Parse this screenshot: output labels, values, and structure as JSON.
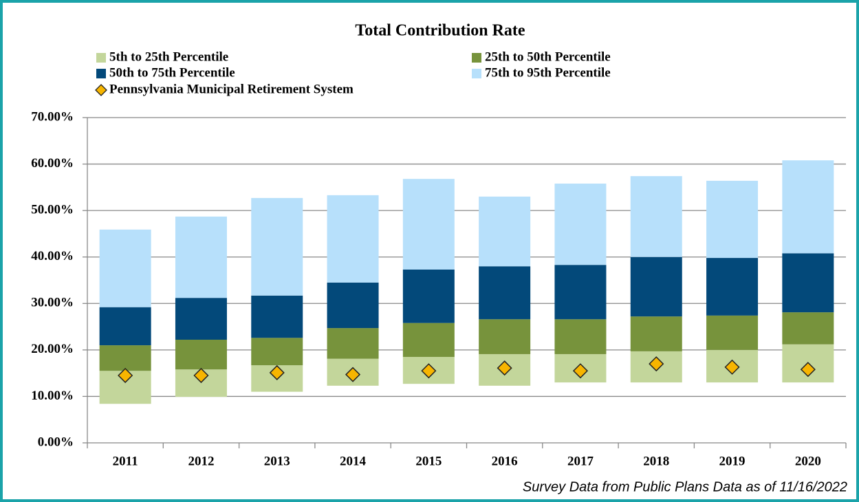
{
  "chart_data": {
    "type": "floating-stacked-bar",
    "title": "Total Contribution Rate",
    "footnote": "Survey Data from Public Plans Data as of 11/16/2022",
    "categories": [
      "2011",
      "2012",
      "2013",
      "2014",
      "2015",
      "2016",
      "2017",
      "2018",
      "2019",
      "2020"
    ],
    "bases": [
      8.4,
      9.9,
      11.0,
      12.3,
      12.7,
      12.3,
      13.0,
      13.0,
      13.0,
      13.0
    ],
    "series": [
      {
        "name": "5th to 25th Percentile",
        "color": "#c3d69b",
        "values": [
          7.1,
          5.9,
          5.7,
          5.8,
          5.8,
          6.8,
          6.1,
          6.7,
          7.0,
          8.2
        ]
      },
      {
        "name": "25th to 50th Percentile",
        "color": "#77933c",
        "values": [
          5.5,
          6.4,
          5.9,
          6.6,
          7.3,
          7.5,
          7.5,
          7.5,
          7.4,
          6.9
        ]
      },
      {
        "name": "50th to 75th Percentile",
        "color": "#03497a",
        "values": [
          8.2,
          9.0,
          9.1,
          9.8,
          11.5,
          11.4,
          11.7,
          12.8,
          12.4,
          12.7
        ]
      },
      {
        "name": "75th to 95th Percentile",
        "color": "#b7e0fb",
        "values": [
          16.7,
          17.5,
          21.0,
          18.8,
          19.5,
          15.0,
          17.5,
          17.4,
          16.6,
          20.0
        ]
      }
    ],
    "markers": {
      "name": "Pennsylvania Municipal Retirement System",
      "color": "#f7b500",
      "values": [
        14.5,
        14.5,
        15.1,
        14.7,
        15.5,
        16.1,
        15.5,
        17.0,
        16.3,
        15.8
      ]
    },
    "ylim": [
      0,
      70
    ],
    "yticks": [
      {
        "value": 0,
        "label": "0.00%"
      },
      {
        "value": 10,
        "label": "10.00%"
      },
      {
        "value": 20,
        "label": "20.00%"
      },
      {
        "value": 30,
        "label": "30.00%"
      },
      {
        "value": 40,
        "label": "40.00%"
      },
      {
        "value": 50,
        "label": "50.00%"
      },
      {
        "value": 60,
        "label": "60.00%"
      },
      {
        "value": 70,
        "label": "70.00%"
      }
    ],
    "grid": true
  }
}
